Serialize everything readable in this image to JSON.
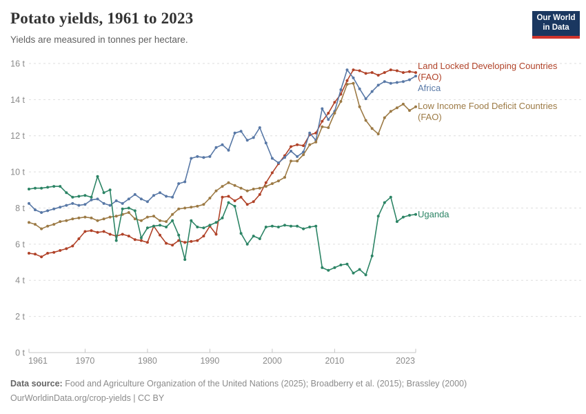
{
  "header": {
    "title": "Potato yields, 1961 to 2023",
    "subtitle": "Yields are measured in tonnes per hectare."
  },
  "logo": {
    "line1": "Our World",
    "line2": "in Data",
    "bg_color": "#1A3760",
    "bar_color": "#D0342C"
  },
  "footer": {
    "source_label": "Data source:",
    "source_text": " Food and Agriculture Organization of the United Nations (2025); Broadberry et al. (2015); Brassley (2000)",
    "link_line": "OurWorldinData.org/crop-yields | CC BY"
  },
  "chart_data": {
    "type": "line",
    "title": "Potato yields, 1961 to 2023",
    "ylabel": "tonnes per hectare",
    "unit": "t",
    "xlim": [
      1961,
      2023
    ],
    "ylim": [
      0,
      16
    ],
    "grid": "horizontal dashed",
    "legend_position": "right-edge line labels",
    "yticks": [
      0,
      2,
      4,
      6,
      8,
      10,
      12,
      14,
      16
    ],
    "ytick_labels": [
      "0 t",
      "2 t",
      "4 t",
      "6 t",
      "8 t",
      "10 t",
      "12 t",
      "14 t",
      "16 t"
    ],
    "xticks": [
      1961,
      1970,
      1980,
      1990,
      2000,
      2010,
      2023
    ],
    "xtick_labels": [
      "1961",
      "1970",
      "1980",
      "1990",
      "2000",
      "2010",
      "2023"
    ],
    "x": [
      1961,
      1962,
      1963,
      1964,
      1965,
      1966,
      1967,
      1968,
      1969,
      1970,
      1971,
      1972,
      1973,
      1974,
      1975,
      1976,
      1977,
      1978,
      1979,
      1980,
      1981,
      1982,
      1983,
      1984,
      1985,
      1986,
      1987,
      1988,
      1989,
      1990,
      1991,
      1992,
      1993,
      1994,
      1995,
      1996,
      1997,
      1998,
      1999,
      2000,
      2001,
      2002,
      2003,
      2004,
      2005,
      2006,
      2007,
      2008,
      2009,
      2010,
      2011,
      2012,
      2013,
      2014,
      2015,
      2016,
      2017,
      2018,
      2019,
      2020,
      2021,
      2022,
      2023
    ],
    "series": [
      {
        "id": "lldc",
        "name": "Land Locked Developing Countries (FAO)",
        "color": "#B04228",
        "values": [
          5.5,
          5.45,
          5.3,
          5.5,
          5.55,
          5.65,
          5.75,
          5.9,
          6.3,
          6.7,
          6.75,
          6.65,
          6.7,
          6.55,
          6.45,
          6.55,
          6.45,
          6.25,
          6.2,
          6.1,
          7.0,
          6.5,
          6.05,
          5.95,
          6.2,
          6.1,
          6.15,
          6.2,
          6.45,
          7.0,
          6.55,
          8.6,
          8.65,
          8.4,
          8.6,
          8.2,
          8.35,
          8.75,
          9.4,
          9.95,
          10.45,
          10.9,
          11.4,
          11.5,
          11.45,
          12.05,
          12.15,
          12.8,
          13.25,
          13.85,
          14.3,
          15.05,
          15.65,
          15.6,
          15.45,
          15.5,
          15.35,
          15.5,
          15.65,
          15.6,
          15.5,
          15.55,
          15.5
        ]
      },
      {
        "id": "africa",
        "name": "Africa",
        "color": "#5878A6",
        "values": [
          8.25,
          7.9,
          7.75,
          7.85,
          7.95,
          8.05,
          8.15,
          8.25,
          8.15,
          8.2,
          8.45,
          8.5,
          8.25,
          8.15,
          8.4,
          8.25,
          8.5,
          8.75,
          8.5,
          8.35,
          8.7,
          8.85,
          8.65,
          8.6,
          9.35,
          9.45,
          10.75,
          10.85,
          10.8,
          10.85,
          11.35,
          11.5,
          11.2,
          12.15,
          12.25,
          11.75,
          11.9,
          12.45,
          11.6,
          10.75,
          10.5,
          10.8,
          11.15,
          10.85,
          11.1,
          12.15,
          11.75,
          13.5,
          12.9,
          13.35,
          14.55,
          15.65,
          15.2,
          14.6,
          14.05,
          14.45,
          14.8,
          15.0,
          14.9,
          14.95,
          15.0,
          15.1,
          15.3
        ]
      },
      {
        "id": "lifdc",
        "name": "Low Income Food Deficit Countries (FAO)",
        "color": "#9C7A45",
        "values": [
          7.2,
          7.1,
          6.85,
          7.0,
          7.1,
          7.25,
          7.3,
          7.4,
          7.45,
          7.5,
          7.45,
          7.3,
          7.4,
          7.5,
          7.55,
          7.65,
          7.75,
          7.4,
          7.3,
          7.5,
          7.55,
          7.3,
          7.25,
          7.65,
          7.95,
          8.0,
          8.05,
          8.1,
          8.2,
          8.55,
          8.95,
          9.2,
          9.4,
          9.25,
          9.1,
          8.95,
          9.05,
          9.1,
          9.2,
          9.35,
          9.5,
          9.7,
          10.6,
          10.6,
          10.95,
          11.5,
          11.65,
          12.5,
          12.45,
          13.25,
          13.9,
          14.85,
          14.9,
          13.6,
          12.85,
          12.4,
          12.1,
          13.0,
          13.35,
          13.55,
          13.75,
          13.4,
          13.6
        ]
      },
      {
        "id": "uganda",
        "name": "Uganda",
        "color": "#2C8465",
        "values": [
          9.05,
          9.1,
          9.1,
          9.15,
          9.2,
          9.2,
          8.85,
          8.6,
          8.65,
          8.7,
          8.6,
          9.75,
          8.85,
          9.0,
          6.2,
          7.95,
          8.0,
          7.85,
          6.35,
          6.9,
          7.0,
          7.05,
          6.95,
          7.3,
          6.5,
          5.15,
          7.3,
          6.95,
          6.9,
          7.05,
          7.2,
          7.45,
          8.3,
          8.1,
          6.6,
          6.0,
          6.45,
          6.3,
          6.95,
          7.0,
          6.95,
          7.05,
          7.0,
          7.0,
          6.85,
          6.95,
          7.0,
          4.7,
          4.55,
          4.7,
          4.85,
          4.9,
          4.4,
          4.6,
          4.3,
          5.35,
          7.55,
          8.3,
          8.6,
          7.25,
          7.5,
          7.6,
          7.65
        ]
      }
    ]
  }
}
